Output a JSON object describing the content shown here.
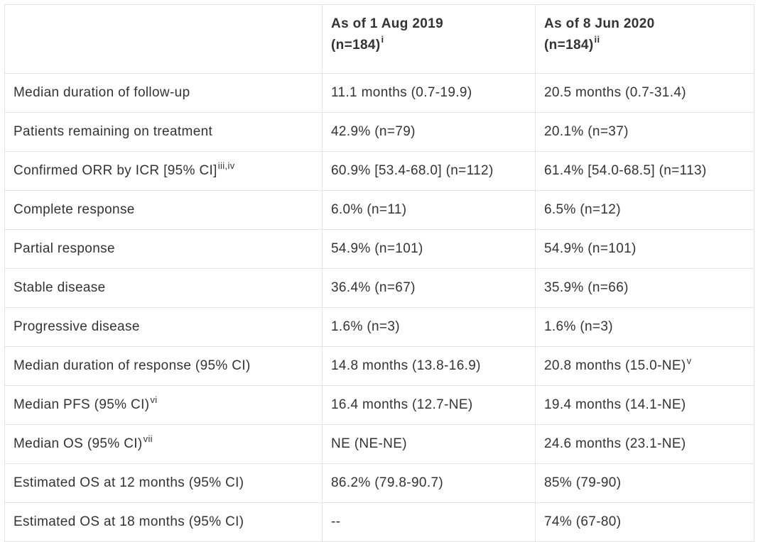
{
  "header": {
    "col0": "",
    "col1_line1": "As of 1 Aug 2019",
    "col1_line2": "(n=184)",
    "col1_sup": "i",
    "col2_line1": "As of 8 Jun 2020",
    "col2_line2": "(n=184)",
    "col2_sup": "ii"
  },
  "rows": [
    {
      "label": "Median duration of follow-up",
      "label_sup": "",
      "v1": "11.1 months (0.7-19.9)",
      "v1_sup": "",
      "v2": "20.5 months (0.7-31.4)",
      "v2_sup": ""
    },
    {
      "label": "Patients remaining on treatment",
      "label_sup": "",
      "v1": "42.9% (n=79)",
      "v1_sup": "",
      "v2": "20.1% (n=37)",
      "v2_sup": ""
    },
    {
      "label": "Confirmed ORR by ICR [95% CI]",
      "label_sup": "iii,iv",
      "v1": "60.9% [53.4-68.0] (n=112)",
      "v1_sup": "",
      "v2": "61.4% [54.0-68.5] (n=113)",
      "v2_sup": ""
    },
    {
      "label": "Complete response",
      "label_sup": "",
      "v1": "6.0% (n=11)",
      "v1_sup": "",
      "v2": "6.5% (n=12)",
      "v2_sup": ""
    },
    {
      "label": "Partial response",
      "label_sup": "",
      "v1": "54.9% (n=101)",
      "v1_sup": "",
      "v2": "54.9% (n=101)",
      "v2_sup": ""
    },
    {
      "label": "Stable disease",
      "label_sup": "",
      "v1": "36.4% (n=67)",
      "v1_sup": "",
      "v2": "35.9% (n=66)",
      "v2_sup": ""
    },
    {
      "label": "Progressive disease",
      "label_sup": "",
      "v1": "1.6% (n=3)",
      "v1_sup": "",
      "v2": "1.6% (n=3)",
      "v2_sup": ""
    },
    {
      "label": "Median duration of response (95% CI)",
      "label_sup": "",
      "v1": "14.8 months (13.8-16.9)",
      "v1_sup": "",
      "v2": "20.8 months (15.0-NE)",
      "v2_sup": "v"
    },
    {
      "label": "Median PFS (95% CI)",
      "label_sup": "vi",
      "v1": "16.4 months (12.7-NE)",
      "v1_sup": "",
      "v2": "19.4 months (14.1-NE)",
      "v2_sup": ""
    },
    {
      "label": "Median OS (95% CI)",
      "label_sup": "vii",
      "v1": "NE (NE-NE)",
      "v1_sup": "",
      "v2": "24.6 months (23.1-NE)",
      "v2_sup": ""
    },
    {
      "label": "Estimated OS at 12 months (95% CI)",
      "label_sup": "",
      "v1": "86.2% (79.8-90.7)",
      "v1_sup": "",
      "v2": "85% (79-90)",
      "v2_sup": ""
    },
    {
      "label": "Estimated OS at 18 months (95% CI)",
      "label_sup": "",
      "v1": "--",
      "v1_sup": "",
      "v2": "74% (67-80)",
      "v2_sup": ""
    }
  ]
}
